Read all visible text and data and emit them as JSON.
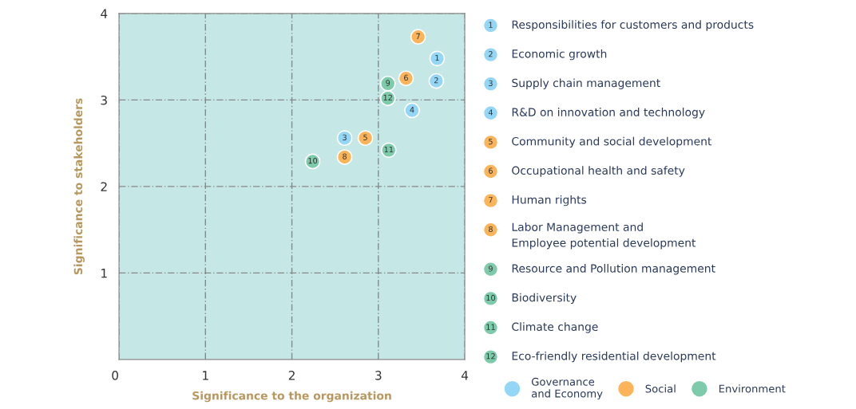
{
  "chart_data": {
    "type": "scatter",
    "xlabel": "Significance to the organization",
    "ylabel": "Significance to stakeholders",
    "xlim": [
      0,
      4
    ],
    "ylim": [
      0,
      4
    ],
    "xticks": [
      0,
      1,
      2,
      3,
      4
    ],
    "yticks": [
      1,
      2,
      3,
      4
    ],
    "grid": true,
    "legend": "bottom",
    "marker": "circle",
    "series": [
      {
        "name": "Governance\nand Economy",
        "color": "#94d6f5",
        "x": [
          3.68,
          3.67,
          2.61,
          3.39
        ],
        "values": [
          3.48,
          3.22,
          2.56,
          2.88
        ]
      },
      {
        "name": "Social",
        "color": "#fbb45a",
        "x": [
          2.85,
          3.32,
          3.46,
          2.61
        ],
        "values": [
          2.56,
          3.25,
          3.73,
          2.34
        ]
      },
      {
        "name": "Environment",
        "color": "#7ecbab",
        "x": [
          3.11,
          2.24,
          3.12,
          3.11
        ],
        "values": [
          3.19,
          2.29,
          2.42,
          3.02
        ]
      }
    ],
    "annotations": [
      {
        "text": "1",
        "x": 3.68,
        "y": 3.48
      },
      {
        "text": "2",
        "x": 3.67,
        "y": 3.22
      },
      {
        "text": "3",
        "x": 2.61,
        "y": 2.56
      },
      {
        "text": "4",
        "x": 3.39,
        "y": 2.88
      },
      {
        "text": "5",
        "x": 2.85,
        "y": 2.56
      },
      {
        "text": "6",
        "x": 3.32,
        "y": 3.25
      },
      {
        "text": "7",
        "x": 3.46,
        "y": 3.73
      },
      {
        "text": "8",
        "x": 2.61,
        "y": 2.34
      },
      {
        "text": "9",
        "x": 3.11,
        "y": 3.19
      },
      {
        "text": "10",
        "x": 2.24,
        "y": 2.29
      },
      {
        "text": "11",
        "x": 3.12,
        "y": 2.42
      },
      {
        "text": "12",
        "x": 3.11,
        "y": 3.02
      },
      "Responsibilities for customers and products",
      "Economic growth",
      "Supply chain management",
      "R&D on innovation and technology",
      "Community and social development",
      "Occupational health and safety",
      "Human rights",
      "Labor Management and\nEmployee potential development",
      "Resource and Pollution management",
      "Biodiversity",
      "Climate change",
      "Eco-friendly residential development"
    ]
  }
}
